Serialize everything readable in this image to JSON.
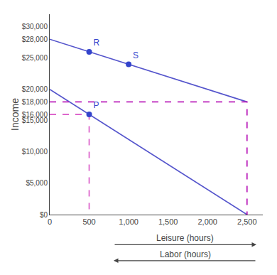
{
  "chart_data": {
    "type": "line",
    "ylabel": "Income",
    "annotations": [
      "Leisure (hours)",
      "Labor (hours)"
    ],
    "grid": false,
    "xlim": [
      0,
      2700
    ],
    "xticks": [
      0,
      500,
      {
        "value": 1000,
        "label": "1,000"
      },
      {
        "value": 1500,
        "label": "1,500"
      },
      {
        "value": 2000,
        "label": "2,000"
      },
      {
        "value": 2500,
        "label": "2,500"
      }
    ],
    "ylim": [
      0,
      32000
    ],
    "yticks": [
      {
        "value": 0,
        "label": "$0"
      },
      {
        "value": 5000,
        "label": "$5,000"
      },
      {
        "value": 10000,
        "label": "$10,000"
      },
      {
        "value": 15000,
        "label": "$15,000"
      },
      {
        "value": 16000,
        "label": "$16,000"
      },
      {
        "value": 18000,
        "label": "$18,000"
      },
      {
        "value": 20000,
        "label": "$20,000"
      },
      {
        "value": 25000,
        "label": "$25,000"
      },
      {
        "value": 28000,
        "label": "$28,000"
      },
      {
        "value": 30000,
        "label": "$30,000"
      }
    ],
    "series": [
      {
        "type": "line",
        "color": "#5555cc",
        "line_style": "solid",
        "x": [
          0,
          2500
        ],
        "values": [
          28000,
          18000
        ]
      },
      {
        "type": "line",
        "color": "#5555cc",
        "line_style": "solid",
        "x": [
          0,
          2500
        ],
        "values": [
          20000,
          0
        ]
      },
      {
        "type": "line",
        "color": "#bb22bb",
        "line_style": "dashed",
        "x": [
          0,
          2500,
          2500
        ],
        "values": [
          18000,
          18000,
          0
        ]
      },
      {
        "type": "line",
        "color": "#dd66cc",
        "line_style": "dashed",
        "x": [
          0,
          500,
          500
        ],
        "values": [
          16000,
          16000,
          0
        ]
      },
      {
        "type": "scatter",
        "color": "#3344cc",
        "marker": "circle",
        "x": [
          500,
          1000,
          500
        ],
        "values": [
          26000,
          24000,
          16000
        ],
        "point_labels": [
          "R",
          "S",
          "P"
        ]
      }
    ]
  }
}
